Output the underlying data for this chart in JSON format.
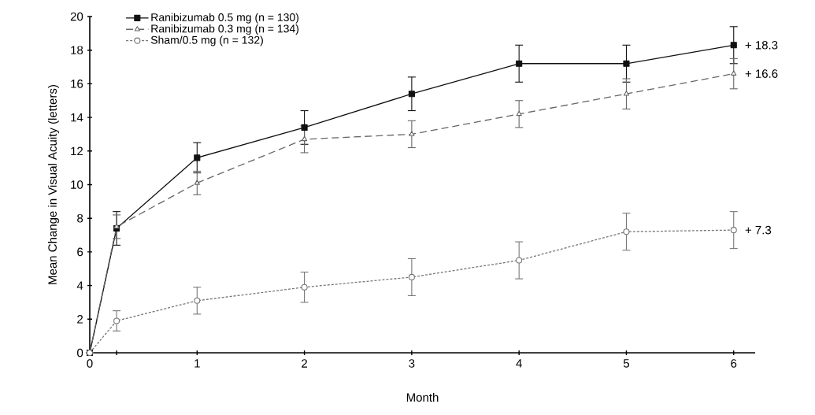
{
  "chart_data": {
    "type": "line",
    "xlabel": "Month",
    "ylabel": "Mean Change in Visual Acuity (letters)",
    "x": [
      0,
      0.25,
      1,
      2,
      3,
      4,
      5,
      6
    ],
    "series": [
      {
        "name": "Ranibizumab 0.5 mg (n = 130)",
        "color": "#111111",
        "marker": "square",
        "line_style": "solid",
        "values": [
          0,
          7.4,
          11.6,
          13.4,
          15.4,
          17.2,
          17.2,
          18.3
        ],
        "errors": [
          null,
          1.0,
          0.9,
          1.0,
          1.0,
          1.1,
          1.1,
          1.1
        ],
        "value_labels": [
          null,
          null,
          null,
          null,
          null,
          null,
          null,
          "+ 18.3"
        ]
      },
      {
        "name": "Ranibizumab 0.3 mg (n = 134)",
        "color": "#666666",
        "marker": "triangle",
        "line_style": "dashed",
        "values": [
          0,
          7.5,
          10.1,
          12.7,
          13.0,
          14.2,
          15.4,
          16.6
        ],
        "errors": [
          null,
          0.7,
          0.7,
          0.8,
          0.8,
          0.8,
          0.9,
          0.9
        ],
        "value_labels": [
          null,
          null,
          null,
          null,
          null,
          null,
          null,
          "+ 16.6"
        ]
      },
      {
        "name": "Sham/0.5 mg (n = 132)",
        "color": "#777777",
        "marker": "circle",
        "line_style": "dotted",
        "values": [
          0,
          1.9,
          3.1,
          3.9,
          4.5,
          5.5,
          7.2,
          7.3
        ],
        "errors": [
          null,
          0.6,
          0.8,
          0.9,
          1.1,
          1.1,
          1.1,
          1.1
        ],
        "value_labels": [
          null,
          null,
          null,
          null,
          null,
          null,
          null,
          "+ 7.3"
        ]
      }
    ],
    "xlim": [
      0,
      6.2
    ],
    "ylim": [
      0,
      20
    ],
    "xticks": [
      0,
      {
        "value": 0.25,
        "label": null
      },
      1,
      2,
      3,
      4,
      5,
      6
    ],
    "yticks": [
      0,
      2,
      4,
      6,
      8,
      10,
      12,
      14,
      16,
      18,
      20
    ],
    "legend": "top left",
    "grid": false
  }
}
